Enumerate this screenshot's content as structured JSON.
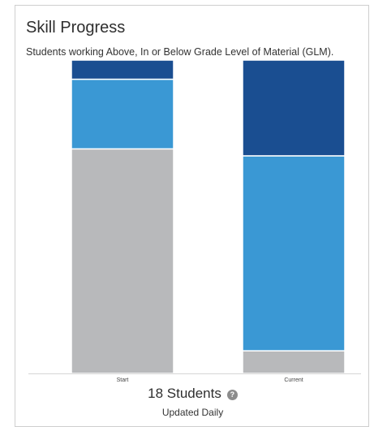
{
  "card": {
    "title": "Skill Progress",
    "subtitle": "Students working Above, In or Below Grade Level of Material (GLM).",
    "students_count": "18 Students",
    "help_icon": "question-circle-icon",
    "help_glyph": "?",
    "updated": "Updated Daily"
  },
  "chart_data": {
    "type": "bar",
    "stacked": true,
    "categories": [
      "Start",
      "Current"
    ],
    "series": [
      {
        "values": [
          12.9,
          1.3
        ],
        "color": "#b8b9bb"
      },
      {
        "values": [
          4.0,
          11.2
        ],
        "color": "#3a98d4"
      },
      {
        "values": [
          1.1,
          5.5
        ],
        "color": "#1a4e91"
      }
    ],
    "ylim": [
      0,
      18
    ],
    "grid": false,
    "legend": "none"
  }
}
